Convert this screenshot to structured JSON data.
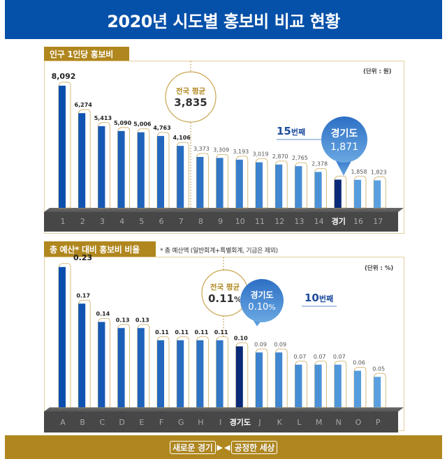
{
  "header": {
    "title": "2020년 시도별 홍보비 비교 현황"
  },
  "footer": {
    "slogan_left": "새로운 경기",
    "slogan_right": "공정한 세상",
    "arrow_left": "▶",
    "arrow_right": "◀"
  },
  "colors": {
    "header_bg": "#0550a8",
    "gold": "#b0871e",
    "bar_dark": "#0b4fae",
    "bar_light": "#4a90d6",
    "bar_highlight": "#0a2a78",
    "base": "#4a4a4a"
  },
  "chart_data": [
    {
      "type": "bar",
      "title": "인구 1인당 홍보비",
      "unit_label": "(단위 : 원)",
      "categories": [
        "1",
        "2",
        "3",
        "4",
        "5",
        "6",
        "7",
        "8",
        "9",
        "10",
        "11",
        "12",
        "13",
        "14",
        "경기",
        "16",
        "17"
      ],
      "values": [
        8092,
        6274,
        5413,
        5090,
        5006,
        4763,
        4106,
        3373,
        3309,
        3193,
        3019,
        2870,
        2765,
        2378,
        1871,
        1858,
        1823
      ],
      "value_labels": [
        "8,092",
        "6,274",
        "5,413",
        "5,090",
        "5,006",
        "4,763",
        "4,106",
        "3,373",
        "3,309",
        "3,193",
        "3,019",
        "2,870",
        "2,765",
        "2,378",
        "",
        "1,858",
        "1,823"
      ],
      "highlight_index": 14,
      "ylim": [
        0,
        8500
      ],
      "average": {
        "label": "전국 평균",
        "value_text": "3,835",
        "value": 3835
      },
      "callout": {
        "name": "경기도",
        "value_text": "1,871",
        "rank_num": "15",
        "rank_suffix": "번째"
      }
    },
    {
      "type": "bar",
      "title": "총 예산* 대비 홍보비 비율",
      "footnote": "* 총 예산액 (일반회계+특별회계, 기금은 제외)",
      "unit_label": "(단위 : %)",
      "categories": [
        "A",
        "B",
        "C",
        "D",
        "E",
        "F",
        "G",
        "H",
        "I",
        "경기도",
        "J",
        "K",
        "L",
        "M",
        "N",
        "O",
        "P"
      ],
      "values": [
        0.23,
        0.17,
        0.14,
        0.13,
        0.13,
        0.11,
        0.11,
        0.11,
        0.11,
        0.1,
        0.09,
        0.09,
        0.07,
        0.07,
        0.07,
        0.06,
        0.05
      ],
      "value_labels": [
        "0.23",
        "0.17",
        "0.14",
        "0.13",
        "0.13",
        "0.11",
        "0.11",
        "0.11",
        "0.11",
        "0.10",
        "0.09",
        "0.09",
        "0.07",
        "0.07",
        "0.07",
        "0.06",
        "0.05"
      ],
      "highlight_index": 9,
      "ylim": [
        0,
        0.24
      ],
      "average": {
        "label": "전국 평균",
        "value_text": "0.11",
        "value_suffix": "%",
        "value": 0.11
      },
      "callout": {
        "name": "경기도",
        "value_text": "0.10",
        "value_suffix": "%",
        "rank_num": "10",
        "rank_suffix": "번째"
      }
    }
  ]
}
